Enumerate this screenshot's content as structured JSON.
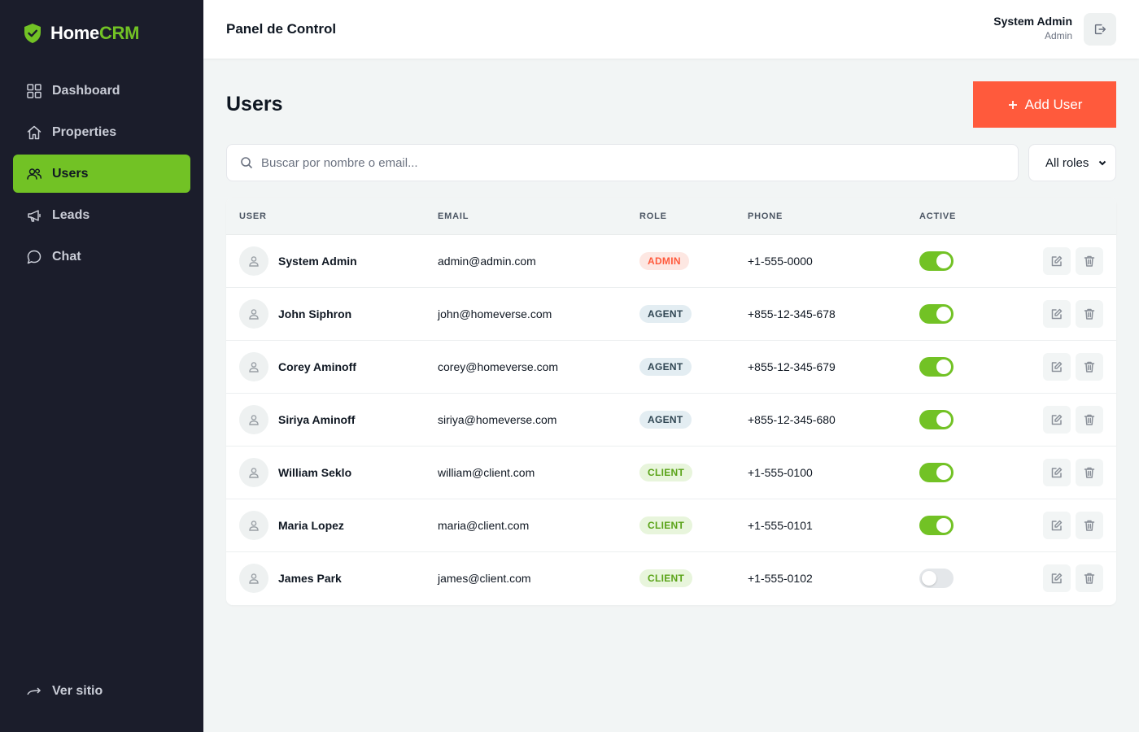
{
  "brand": {
    "home": "Home",
    "crm": "CRM",
    "accent": "#72c225"
  },
  "sidebar": {
    "items": [
      {
        "label": "Dashboard",
        "icon": "dashboard-icon",
        "active": false
      },
      {
        "label": "Properties",
        "icon": "home-icon",
        "active": false
      },
      {
        "label": "Users",
        "icon": "users-icon",
        "active": true
      },
      {
        "label": "Leads",
        "icon": "megaphone-icon",
        "active": false
      },
      {
        "label": "Chat",
        "icon": "chat-icon",
        "active": false
      }
    ],
    "footer_link": "Ver sitio"
  },
  "header": {
    "title": "Panel de Control",
    "user_name": "System Admin",
    "user_role": "Admin"
  },
  "main": {
    "title": "Users",
    "add_button": "Add User",
    "search_placeholder": "Buscar por nombre o email...",
    "role_filter": "All roles"
  },
  "table": {
    "columns": [
      "USER",
      "EMAIL",
      "ROLE",
      "PHONE",
      "ACTIVE"
    ],
    "rows": [
      {
        "name": "System Admin",
        "email": "admin@admin.com",
        "role": "ADMIN",
        "phone": "+1-555-0000",
        "active": true
      },
      {
        "name": "John Siphron",
        "email": "john@homeverse.com",
        "role": "AGENT",
        "phone": "+855-12-345-678",
        "active": true
      },
      {
        "name": "Corey Aminoff",
        "email": "corey@homeverse.com",
        "role": "AGENT",
        "phone": "+855-12-345-679",
        "active": true
      },
      {
        "name": "Siriya Aminoff",
        "email": "siriya@homeverse.com",
        "role": "AGENT",
        "phone": "+855-12-345-680",
        "active": true
      },
      {
        "name": "William Seklo",
        "email": "william@client.com",
        "role": "CLIENT",
        "phone": "+1-555-0100",
        "active": true
      },
      {
        "name": "Maria Lopez",
        "email": "maria@client.com",
        "role": "CLIENT",
        "phone": "+1-555-0101",
        "active": true
      },
      {
        "name": "James Park",
        "email": "james@client.com",
        "role": "CLIENT",
        "phone": "+1-555-0102",
        "active": false
      }
    ]
  },
  "role_colors": {
    "ADMIN": {
      "bg": "#fde7e2",
      "fg": "#ff5a3c"
    },
    "AGENT": {
      "bg": "#e3edf2",
      "fg": "#2f4552"
    },
    "CLIENT": {
      "bg": "#e8f5dc",
      "fg": "#5aa318"
    }
  }
}
